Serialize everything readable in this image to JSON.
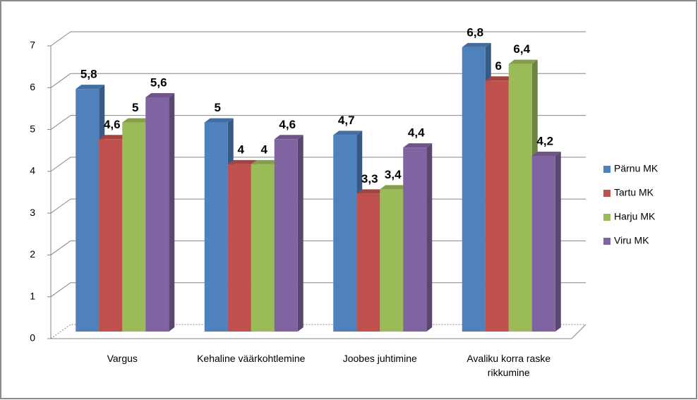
{
  "chart_data": {
    "type": "bar",
    "categories": [
      "Vargus",
      "Kehaline väärkohtlemine",
      "Joobes juhtimine",
      "Avaliku korra raske rikkumine"
    ],
    "series": [
      {
        "name": "Pärnu MK",
        "color": "#4f81bd",
        "values": [
          5.8,
          5,
          4.7,
          6.8
        ],
        "value_labels": [
          "5,8",
          "5",
          "4,7",
          "6,8"
        ]
      },
      {
        "name": "Tartu MK",
        "color": "#c0504d",
        "values": [
          4.6,
          4,
          3.3,
          6
        ],
        "value_labels": [
          "4,6",
          "4",
          "3,3",
          "6"
        ]
      },
      {
        "name": "Harju MK",
        "color": "#9bbb59",
        "values": [
          5,
          4,
          3.4,
          6.4
        ],
        "value_labels": [
          "5",
          "4",
          "3,4",
          "6,4"
        ]
      },
      {
        "name": "Viru MK",
        "color": "#8064a2",
        "values": [
          5.6,
          4.6,
          4.4,
          4.2
        ],
        "value_labels": [
          "5,6",
          "4,6",
          "4,4",
          "4,2"
        ]
      }
    ],
    "ylim": [
      0,
      7
    ],
    "yticks": [
      0,
      1,
      2,
      3,
      4,
      5,
      6,
      7
    ],
    "grid": true,
    "legend": "right"
  }
}
